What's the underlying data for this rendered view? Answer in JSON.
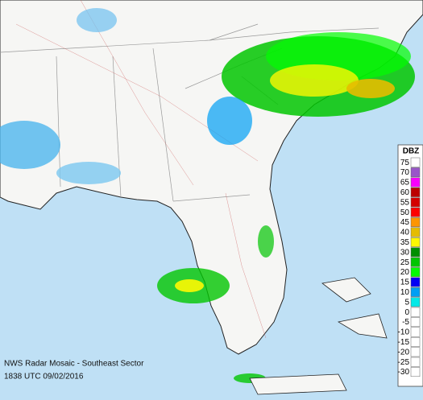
{
  "caption": {
    "title": "NWS Radar Mosaic - Southeast Sector",
    "timestamp": "1838 UTC 09/02/2016"
  },
  "legend": {
    "title": "DBZ",
    "items": [
      {
        "label": 75,
        "color": "#ffffff"
      },
      {
        "label": 70,
        "color": "#9955c9"
      },
      {
        "label": 65,
        "color": "#f800fd"
      },
      {
        "label": 60,
        "color": "#bc0000"
      },
      {
        "label": 55,
        "color": "#d40000"
      },
      {
        "label": 50,
        "color": "#fd0000"
      },
      {
        "label": 45,
        "color": "#fd9500"
      },
      {
        "label": 40,
        "color": "#e5bc00"
      },
      {
        "label": 35,
        "color": "#fdf802"
      },
      {
        "label": 30,
        "color": "#008e00"
      },
      {
        "label": 25,
        "color": "#01c501"
      },
      {
        "label": 20,
        "color": "#02fd02"
      },
      {
        "label": 15,
        "color": "#0300f4"
      },
      {
        "label": 10,
        "color": "#019ff4"
      },
      {
        "label": 5,
        "color": "#04e9e7"
      },
      {
        "label": 0,
        "color": "#ffffff"
      },
      {
        "label": -5,
        "color": "#ffffff"
      },
      {
        "label": -10,
        "color": "#ffffff"
      },
      {
        "label": -15,
        "color": "#ffffff"
      },
      {
        "label": -20,
        "color": "#ffffff"
      },
      {
        "label": -25,
        "color": "#ffffff"
      },
      {
        "label": -30,
        "color": "#ffffff"
      }
    ]
  }
}
